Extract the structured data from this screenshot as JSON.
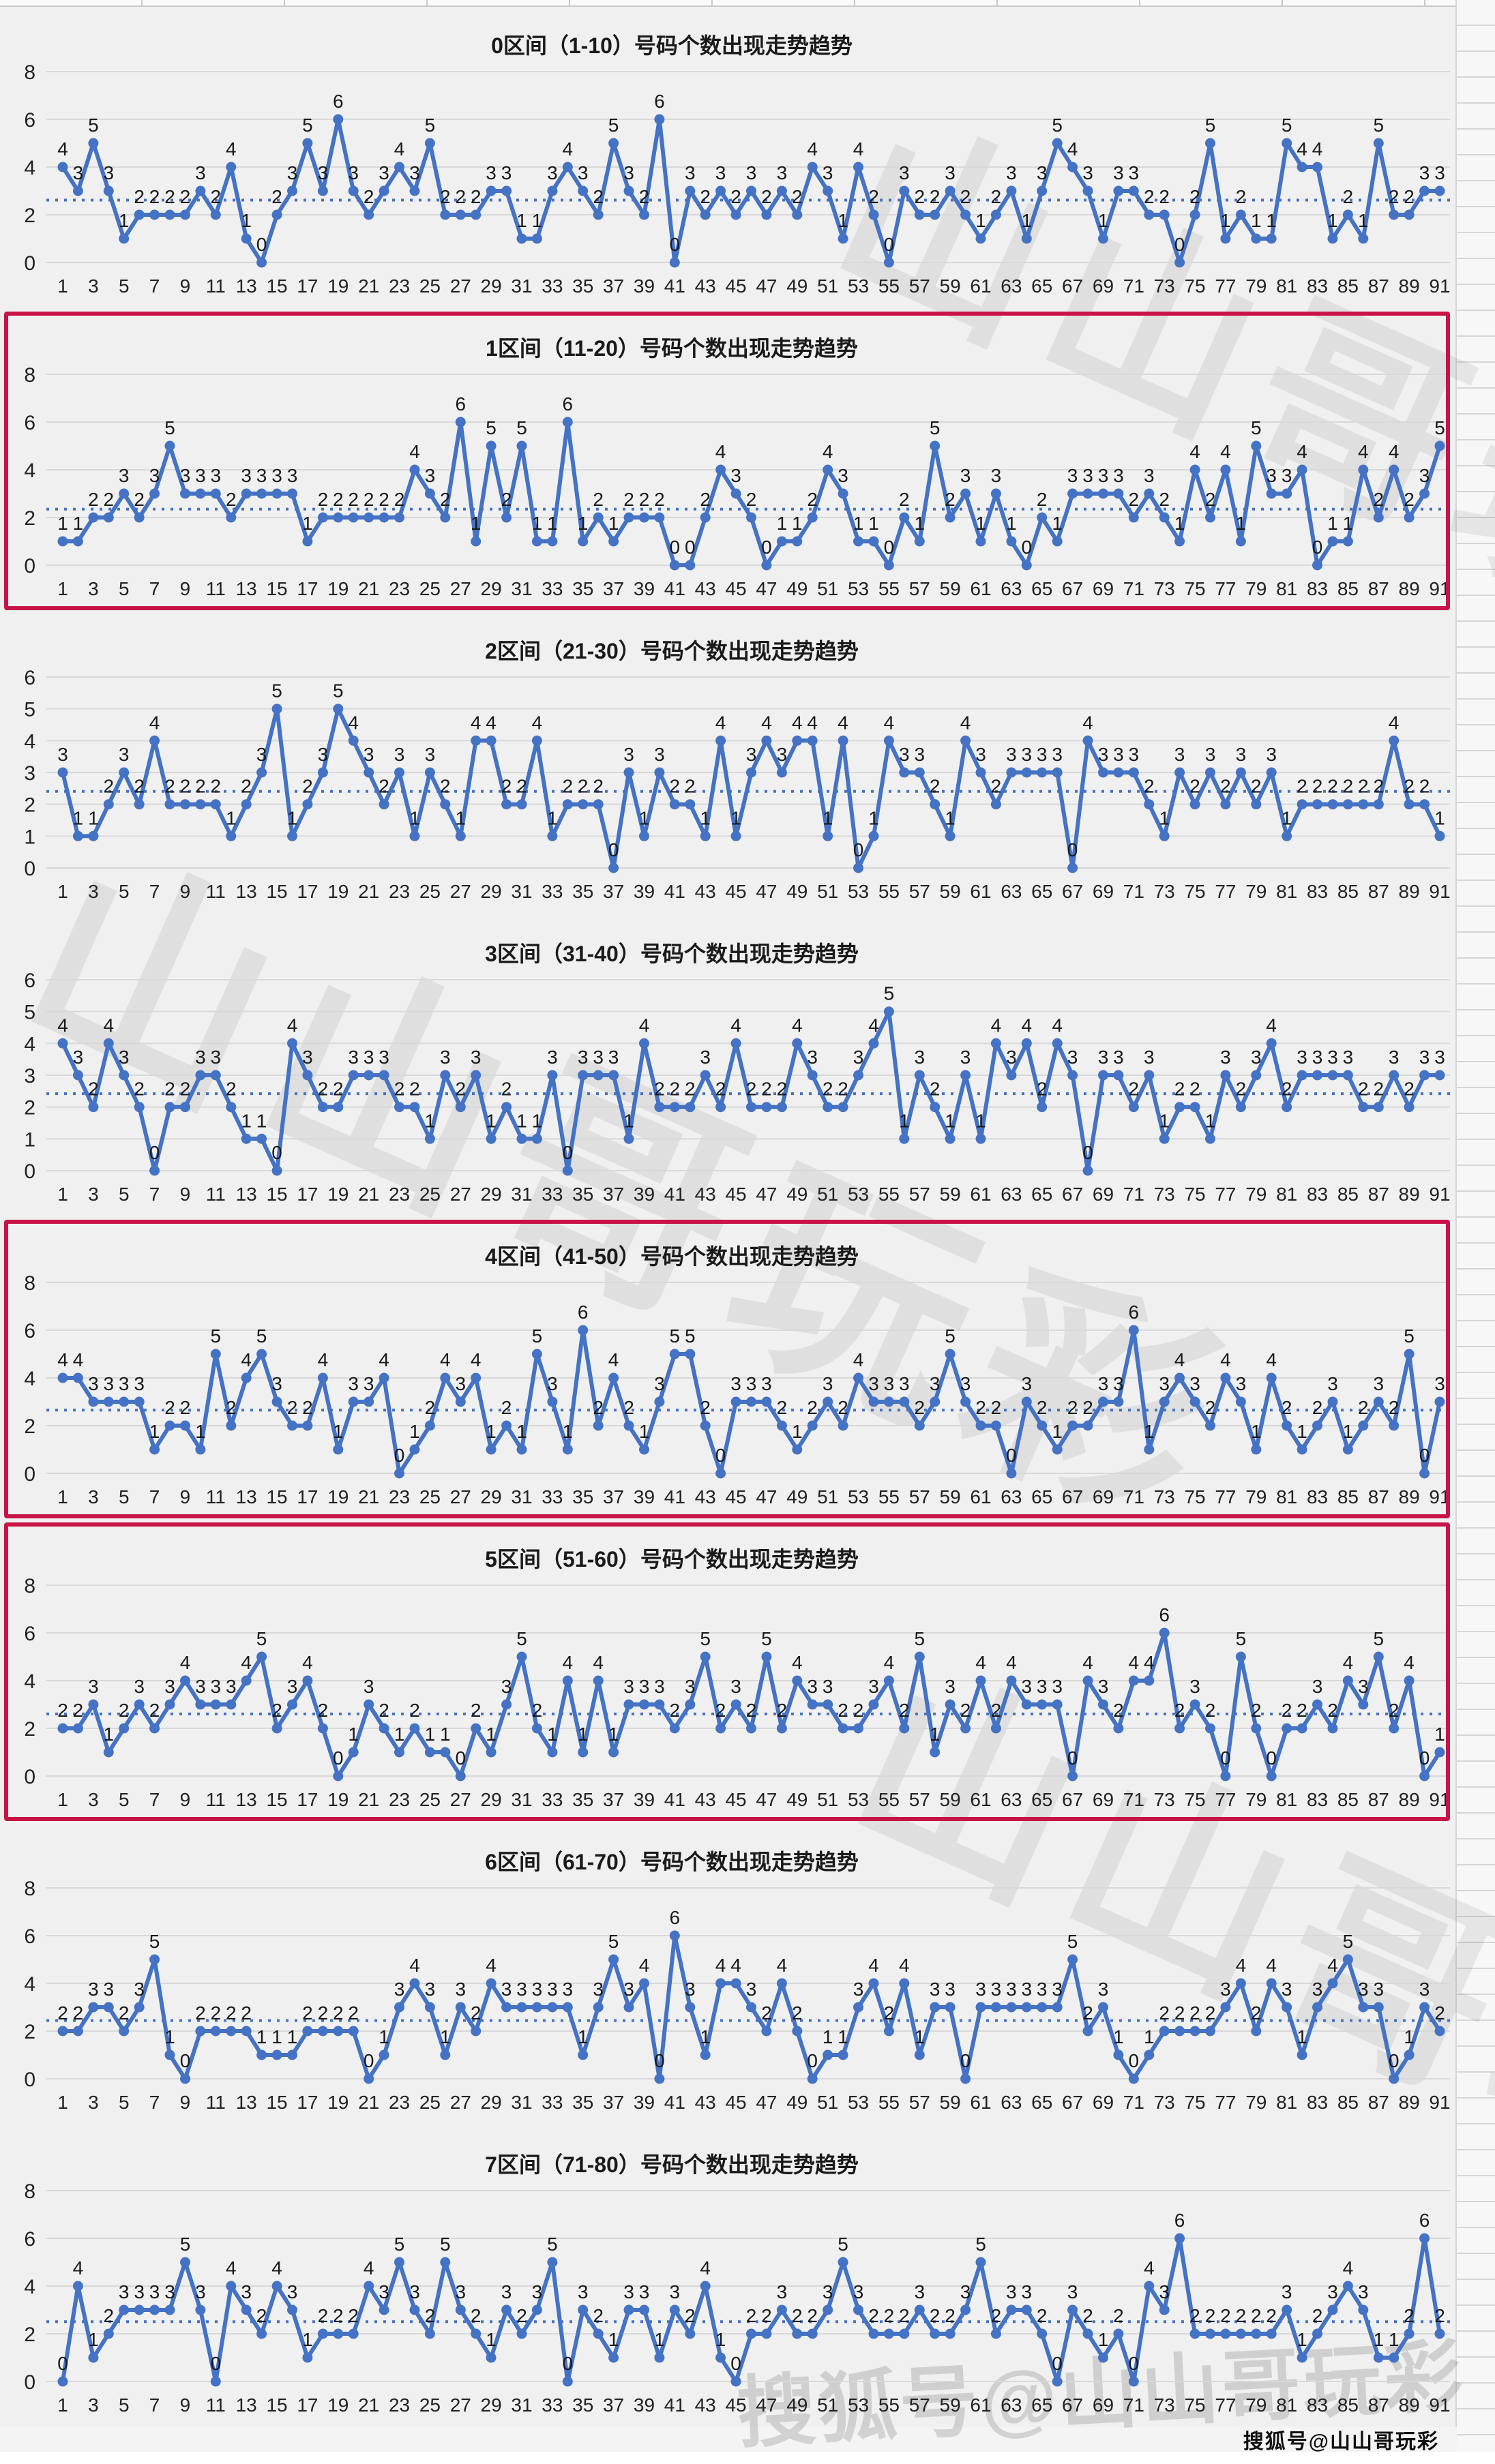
{
  "page": {
    "footer": "搜狐号@山山哥玩彩"
  },
  "colors": {
    "line": "#4472c4",
    "mean_line": "#4472c4",
    "grid": "#d8d8d8",
    "label": "#1a1a1a",
    "highlight_border": "#c81346",
    "background": "#f0f0f0"
  },
  "axis": {
    "x_first": 1,
    "x_last": 91,
    "x_tick_step": 2
  },
  "chart_data": [
    {
      "type": "line",
      "title": "0区间（1-10）号码个数出现走势趋势",
      "xlabel": "",
      "ylabel": "",
      "ylim": [
        0,
        8
      ],
      "ystep": 2,
      "grid": true,
      "highlighted": false,
      "x_range": [
        1,
        91
      ],
      "values": [
        4,
        3,
        5,
        3,
        1,
        2,
        2,
        2,
        2,
        3,
        2,
        4,
        1,
        0,
        2,
        3,
        5,
        3,
        6,
        3,
        2,
        3,
        4,
        3,
        5,
        2,
        2,
        2,
        3,
        3,
        1,
        1,
        3,
        4,
        3,
        2,
        5,
        3,
        2,
        6,
        0,
        3,
        2,
        3,
        2,
        3,
        2,
        3,
        2,
        4,
        3,
        1,
        4,
        2,
        0,
        3,
        2,
        2,
        3,
        2,
        1,
        2,
        3,
        1,
        3,
        5,
        4,
        3,
        1,
        3,
        3,
        2,
        2,
        0,
        2,
        5,
        1,
        2,
        1,
        1,
        5,
        4,
        4,
        1,
        2,
        1,
        5,
        2,
        2,
        3,
        3
      ]
    },
    {
      "type": "line",
      "title": "1区间（11-20）号码个数出现走势趋势",
      "xlabel": "",
      "ylabel": "",
      "ylim": [
        0,
        8
      ],
      "ystep": 2,
      "grid": true,
      "highlighted": true,
      "x_range": [
        1,
        91
      ],
      "values": [
        1,
        1,
        2,
        2,
        3,
        2,
        3,
        5,
        3,
        3,
        3,
        2,
        3,
        3,
        3,
        3,
        1,
        2,
        2,
        2,
        2,
        2,
        2,
        4,
        3,
        2,
        6,
        1,
        5,
        2,
        5,
        1,
        1,
        6,
        1,
        2,
        1,
        2,
        2,
        2,
        0,
        0,
        2,
        4,
        3,
        2,
        0,
        1,
        1,
        2,
        4,
        3,
        1,
        1,
        0,
        2,
        1,
        5,
        2,
        3,
        1,
        3,
        1,
        0,
        2,
        1,
        3,
        3,
        3,
        3,
        2,
        3,
        2,
        1,
        4,
        2,
        4,
        1,
        5,
        3,
        3,
        4,
        0,
        1,
        1,
        4,
        2,
        4,
        2,
        3,
        5
      ]
    },
    {
      "type": "line",
      "title": "2区间（21-30）号码个数出现走势趋势",
      "xlabel": "",
      "ylabel": "",
      "ylim": [
        0,
        6
      ],
      "ystep": 1,
      "grid": true,
      "highlighted": false,
      "x_range": [
        1,
        91
      ],
      "values": [
        3,
        1,
        1,
        2,
        3,
        2,
        4,
        2,
        2,
        2,
        2,
        1,
        2,
        3,
        5,
        1,
        2,
        3,
        5,
        4,
        3,
        2,
        3,
        1,
        3,
        2,
        1,
        4,
        4,
        2,
        2,
        4,
        1,
        2,
        2,
        2,
        0,
        3,
        1,
        3,
        2,
        2,
        1,
        4,
        1,
        3,
        4,
        3,
        4,
        4,
        1,
        4,
        0,
        1,
        4,
        3,
        3,
        2,
        1,
        4,
        3,
        2,
        3,
        3,
        3,
        3,
        0,
        4,
        3,
        3,
        3,
        2,
        1,
        3,
        2,
        3,
        2,
        3,
        2,
        3,
        1,
        2,
        2,
        2,
        2,
        2,
        2,
        4,
        2,
        2,
        1
      ]
    },
    {
      "type": "line",
      "title": "3区间（31-40）号码个数出现走势趋势",
      "xlabel": "",
      "ylabel": "",
      "ylim": [
        0,
        6
      ],
      "ystep": 1,
      "grid": true,
      "highlighted": false,
      "x_range": [
        1,
        91
      ],
      "values": [
        4,
        3,
        2,
        4,
        3,
        2,
        0,
        2,
        2,
        3,
        3,
        2,
        1,
        1,
        0,
        4,
        3,
        2,
        2,
        3,
        3,
        3,
        2,
        2,
        1,
        3,
        2,
        3,
        1,
        2,
        1,
        1,
        3,
        0,
        3,
        3,
        3,
        1,
        4,
        2,
        2,
        2,
        3,
        2,
        4,
        2,
        2,
        2,
        4,
        3,
        2,
        2,
        3,
        4,
        5,
        1,
        3,
        2,
        1,
        3,
        1,
        4,
        3,
        4,
        2,
        4,
        3,
        0,
        3,
        3,
        2,
        3,
        1,
        2,
        2,
        1,
        3,
        2,
        3,
        4,
        2,
        3,
        3,
        3,
        3,
        2,
        2,
        3,
        2,
        3,
        3
      ]
    },
    {
      "type": "line",
      "title": "4区间（41-50）号码个数出现走势趋势",
      "xlabel": "",
      "ylabel": "",
      "ylim": [
        0,
        8
      ],
      "ystep": 2,
      "grid": true,
      "highlighted": true,
      "x_range": [
        1,
        91
      ],
      "values": [
        4,
        4,
        3,
        3,
        3,
        3,
        1,
        2,
        2,
        1,
        5,
        2,
        4,
        5,
        3,
        2,
        2,
        4,
        1,
        3,
        3,
        4,
        0,
        1,
        2,
        4,
        3,
        4,
        1,
        2,
        1,
        5,
        3,
        1,
        6,
        2,
        4,
        2,
        1,
        3,
        5,
        5,
        2,
        0,
        3,
        3,
        3,
        2,
        1,
        2,
        3,
        2,
        4,
        3,
        3,
        3,
        2,
        3,
        5,
        3,
        2,
        2,
        0,
        3,
        2,
        1,
        2,
        2,
        3,
        3,
        6,
        1,
        3,
        4,
        3,
        2,
        4,
        3,
        1,
        4,
        2,
        1,
        2,
        3,
        1,
        2,
        3,
        2,
        5,
        0,
        3
      ]
    },
    {
      "type": "line",
      "title": "5区间（51-60）号码个数出现走势趋势",
      "xlabel": "",
      "ylabel": "",
      "ylim": [
        0,
        8
      ],
      "ystep": 2,
      "grid": true,
      "highlighted": true,
      "x_range": [
        1,
        91
      ],
      "values": [
        2,
        2,
        3,
        1,
        2,
        3,
        2,
        3,
        4,
        3,
        3,
        3,
        4,
        5,
        2,
        3,
        4,
        2,
        0,
        1,
        3,
        2,
        1,
        2,
        1,
        1,
        0,
        2,
        1,
        3,
        5,
        2,
        1,
        4,
        1,
        4,
        1,
        3,
        3,
        3,
        2,
        3,
        5,
        2,
        3,
        2,
        5,
        2,
        4,
        3,
        3,
        2,
        2,
        3,
        4,
        2,
        5,
        1,
        3,
        2,
        4,
        2,
        4,
        3,
        3,
        3,
        0,
        4,
        3,
        2,
        4,
        4,
        6,
        2,
        3,
        2,
        0,
        5,
        2,
        0,
        2,
        2,
        3,
        2,
        4,
        3,
        5,
        2,
        4,
        0,
        1
      ]
    },
    {
      "type": "line",
      "title": "6区间（61-70）号码个数出现走势趋势",
      "xlabel": "",
      "ylabel": "",
      "ylim": [
        0,
        8
      ],
      "ystep": 2,
      "grid": true,
      "highlighted": false,
      "x_range": [
        1,
        91
      ],
      "values": [
        2,
        2,
        3,
        3,
        2,
        3,
        5,
        1,
        0,
        2,
        2,
        2,
        2,
        1,
        1,
        1,
        2,
        2,
        2,
        2,
        0,
        1,
        3,
        4,
        3,
        1,
        3,
        2,
        4,
        3,
        3,
        3,
        3,
        3,
        1,
        3,
        5,
        3,
        4,
        0,
        6,
        3,
        1,
        4,
        4,
        3,
        2,
        4,
        2,
        0,
        1,
        1,
        3,
        4,
        2,
        4,
        1,
        3,
        3,
        0,
        3,
        3,
        3,
        3,
        3,
        3,
        5,
        2,
        3,
        1,
        0,
        1,
        2,
        2,
        2,
        2,
        3,
        4,
        2,
        4,
        3,
        1,
        3,
        4,
        5,
        3,
        3,
        0,
        1,
        3,
        2
      ]
    },
    {
      "type": "line",
      "title": "7区间（71-80）号码个数出现走势趋势",
      "xlabel": "",
      "ylabel": "",
      "ylim": [
        0,
        8
      ],
      "ystep": 2,
      "grid": true,
      "highlighted": false,
      "x_range": [
        1,
        91
      ],
      "values": [
        0,
        4,
        1,
        2,
        3,
        3,
        3,
        3,
        5,
        3,
        0,
        4,
        3,
        2,
        4,
        3,
        1,
        2,
        2,
        2,
        4,
        3,
        5,
        3,
        2,
        5,
        3,
        2,
        1,
        3,
        2,
        3,
        5,
        0,
        3,
        2,
        1,
        3,
        3,
        1,
        3,
        2,
        4,
        1,
        0,
        2,
        2,
        3,
        2,
        2,
        3,
        5,
        3,
        2,
        2,
        2,
        3,
        2,
        2,
        3,
        5,
        2,
        3,
        3,
        2,
        0,
        3,
        2,
        1,
        2,
        0,
        4,
        3,
        6,
        2,
        2,
        2,
        2,
        2,
        2,
        3,
        1,
        2,
        3,
        4,
        3,
        1,
        1,
        2,
        6,
        2
      ]
    }
  ],
  "watermarks": [
    {
      "text": "山山哥玩彩"
    },
    {
      "text": "山山哥玩彩"
    },
    {
      "text": "山山哥玩彩"
    },
    {
      "text": "搜狐号@山山哥玩彩"
    }
  ]
}
